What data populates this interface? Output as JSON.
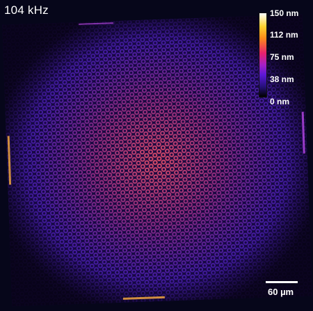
{
  "title": "104 kHz",
  "colorbar": {
    "ticks": [
      "150 nm",
      "112 nm",
      "75 nm",
      "38 nm",
      "0 nm"
    ],
    "range_nm": [
      0,
      150
    ],
    "colormap": "black-purple-magenta-orange-yellow-white (fire)"
  },
  "scalebar": {
    "label": "60 µm"
  },
  "colors": {
    "background": "#06061a",
    "hole_center": "#e0507a",
    "hole_edge": "#6a2cf0"
  }
}
